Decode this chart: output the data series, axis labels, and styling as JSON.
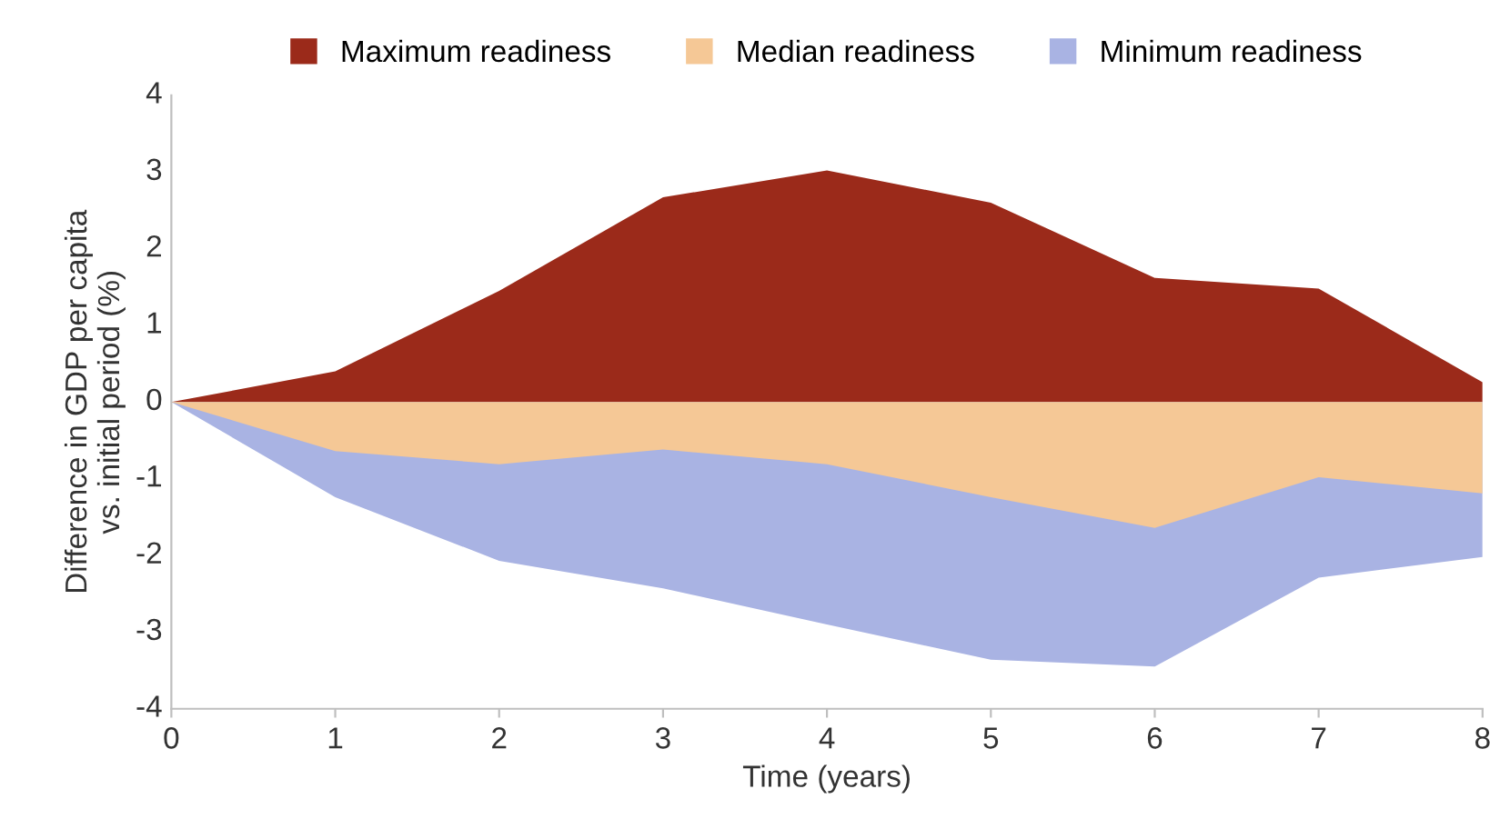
{
  "chart_data": {
    "type": "area",
    "xlabel": "Time (years)",
    "ylabel": "Difference in GDP per capita\nvs. initial period (%)",
    "x": [
      0,
      1,
      2,
      3,
      4,
      5,
      6,
      7,
      8
    ],
    "series": [
      {
        "name": "Maximum readiness",
        "color": "#9b2a1a",
        "values": [
          0,
          0.4,
          1.45,
          2.67,
          3.02,
          2.6,
          1.62,
          1.48,
          0.26
        ]
      },
      {
        "name": "Median readiness",
        "color": "#f5c896",
        "values": [
          0,
          -0.64,
          -0.81,
          -0.62,
          -0.81,
          -1.24,
          -1.64,
          -0.98,
          -1.19
        ]
      },
      {
        "name": "Minimum readiness",
        "color": "#a9b3e3",
        "values": [
          0,
          -1.24,
          -2.07,
          -2.43,
          -2.9,
          -3.36,
          -3.45,
          -2.29,
          -2.02
        ]
      }
    ],
    "xlim": [
      0,
      8
    ],
    "xticks": [
      0,
      1,
      2,
      3,
      4,
      5,
      6,
      7,
      8
    ],
    "ylim": [
      -4,
      4
    ],
    "yticks": [
      -4,
      -3,
      -2,
      -1,
      0,
      1,
      2,
      3,
      4
    ],
    "grid": false,
    "legend": "top"
  }
}
